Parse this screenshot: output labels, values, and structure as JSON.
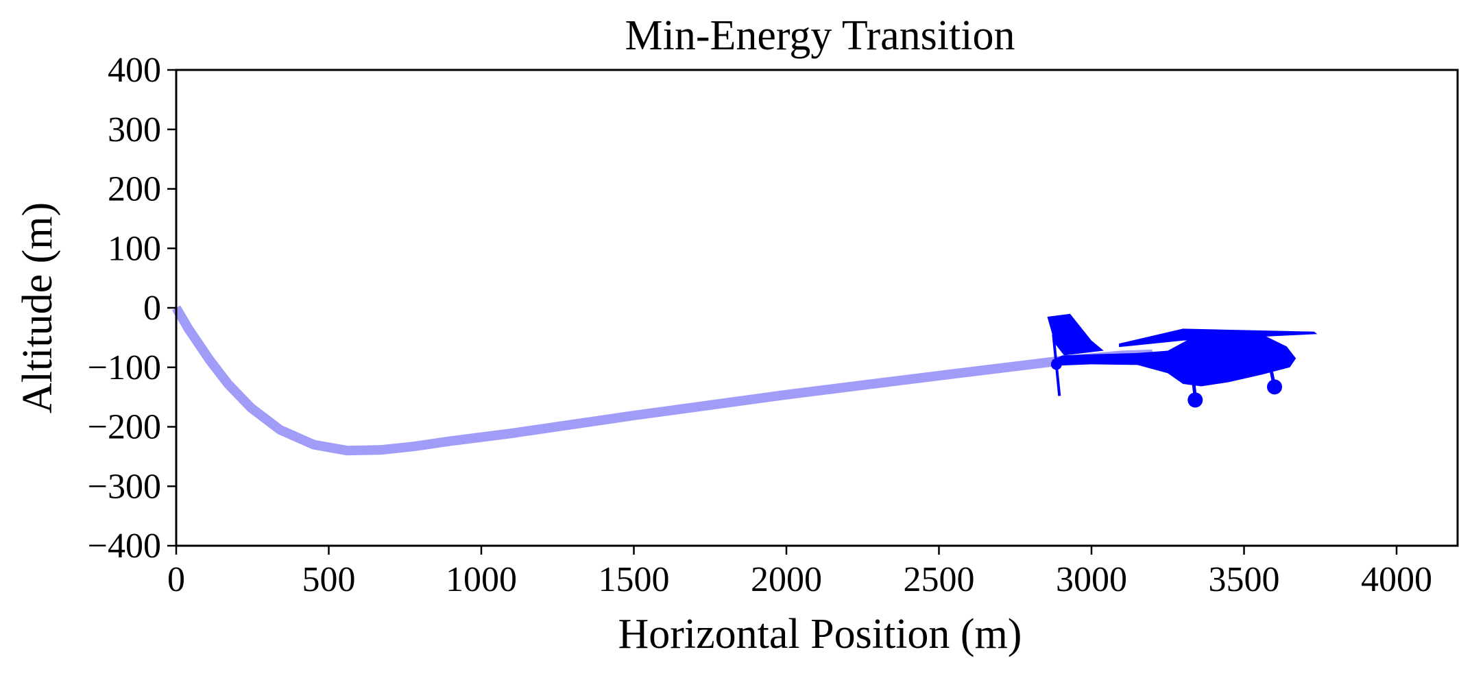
{
  "chart_data": {
    "type": "line",
    "title": "Min-Energy Transition",
    "xlabel": "Horizontal Position (m)",
    "ylabel": "Altitude (m)",
    "xlim": [
      0,
      4200
    ],
    "ylim": [
      -400,
      400
    ],
    "x_ticks": [
      0,
      500,
      1000,
      1500,
      2000,
      2500,
      3000,
      3500,
      4000
    ],
    "y_ticks": [
      400,
      300,
      200,
      100,
      0,
      -100,
      -200,
      -300,
      -400
    ],
    "x_tick_labels": [
      "0",
      "500",
      "1000",
      "1500",
      "2000",
      "2500",
      "3000",
      "3500",
      "4000"
    ],
    "y_tick_labels": [
      "400",
      "300",
      "200",
      "100",
      "0",
      "−100",
      "−200",
      "−300",
      "−400"
    ],
    "grid": false,
    "series": [
      {
        "color": "#a09cf7",
        "x": [
          0,
          40,
          110,
          170,
          245,
          340,
          450,
          560,
          670,
          780,
          900,
          1100,
          1500,
          2000,
          2500,
          2900,
          3100,
          3200
        ],
        "y": [
          0,
          -35,
          -88,
          -128,
          -168,
          -205,
          -230,
          -240,
          -239,
          -233,
          -224,
          -211,
          -181,
          -146,
          -114,
          -89,
          -80,
          -78
        ]
      }
    ],
    "marker": {
      "icon": "airplane-icon",
      "color": "#0000ff",
      "x_range": [
        2850,
        3730
      ],
      "y_range": [
        -155,
        -10
      ]
    }
  }
}
